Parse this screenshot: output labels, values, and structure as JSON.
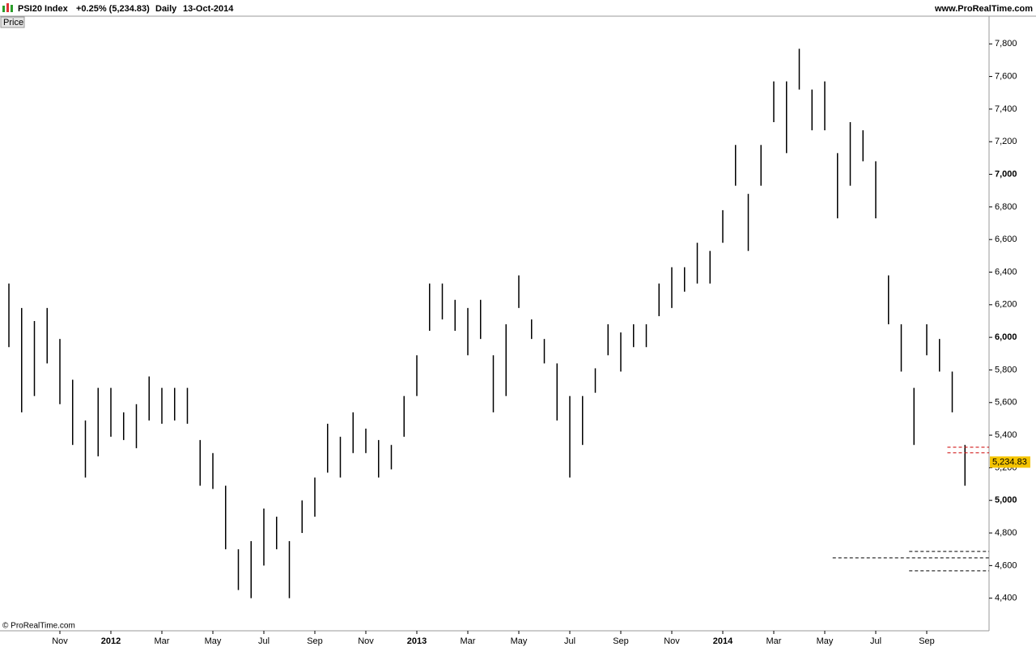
{
  "header": {
    "symbol": "PSI20 Index",
    "change": "+0.25% (5,234.83)",
    "period": "Daily",
    "date": "13-Oct-2014",
    "site": "www.ProRealTime.com"
  },
  "panel_label": "Price",
  "footer": "© ProRealTime.com",
  "chart_data": {
    "type": "ohlc",
    "color": "#000000",
    "categories": [
      null,
      null,
      null,
      null,
      "Nov",
      null,
      null,
      null,
      "2012",
      null,
      null,
      null,
      "Mar",
      null,
      null,
      null,
      "May",
      null,
      null,
      null,
      "Jul",
      null,
      null,
      null,
      "Sep",
      null,
      null,
      null,
      "Nov",
      null,
      null,
      null,
      "2013",
      null,
      null,
      null,
      "Mar",
      null,
      null,
      null,
      "May",
      null,
      null,
      null,
      "Jul",
      null,
      null,
      null,
      "Sep",
      null,
      null,
      null,
      "Nov",
      null,
      null,
      null,
      "2014",
      null,
      null,
      null,
      "Mar",
      null,
      null,
      null,
      "May",
      null,
      null,
      null,
      "Jul",
      null,
      null,
      null,
      "Sep",
      null,
      null,
      null
    ],
    "bold_categories": [
      "2012",
      "2013",
      "2014"
    ],
    "high": [
      6330,
      6180,
      6100,
      6180,
      5990,
      5740,
      5490,
      5690,
      5690,
      5540,
      5590,
      5760,
      5690,
      5690,
      5690,
      5370,
      5290,
      5090,
      4700,
      4750,
      4950,
      4900,
      4750,
      5000,
      5140,
      5470,
      5390,
      5540,
      5440,
      5370,
      5340,
      5640,
      5890,
      6330,
      6330,
      6230,
      6180,
      6230,
      5890,
      6080,
      6380,
      6110,
      5990,
      5840,
      5640,
      5640,
      5810,
      6080,
      6030,
      6080,
      6080,
      6330,
      6430,
      6430,
      6580,
      6530,
      6780,
      7180,
      6880,
      7180,
      7570,
      7570,
      7770,
      7520,
      7570,
      7130,
      7320,
      7270,
      7080,
      6380,
      6080,
      5690,
      6080,
      5990,
      5790,
      5340
    ],
    "low": [
      5940,
      5540,
      5640,
      5840,
      5590,
      5340,
      5140,
      5270,
      5390,
      5370,
      5320,
      5490,
      5470,
      5490,
      5470,
      5090,
      5070,
      4700,
      4450,
      4400,
      4600,
      4700,
      4400,
      4800,
      4900,
      5170,
      5140,
      5290,
      5290,
      5140,
      5190,
      5390,
      5640,
      6040,
      6110,
      6040,
      5890,
      5990,
      5540,
      5640,
      6180,
      5990,
      5840,
      5490,
      5140,
      5340,
      5660,
      5890,
      5790,
      5940,
      5940,
      6130,
      6180,
      6280,
      6330,
      6330,
      6580,
      6930,
      6530,
      6930,
      7320,
      7130,
      7520,
      7270,
      7270,
      6730,
      6930,
      7080,
      6730,
      6080,
      5790,
      5340,
      5890,
      5790,
      5540,
      5090
    ],
    "last": {
      "value": 5234.83,
      "label": "5,234.83"
    },
    "levels": [
      {
        "value": 5326,
        "start": 74,
        "color": "#cc0000"
      },
      {
        "value": 5292,
        "start": 74,
        "color": "#cc0000"
      },
      {
        "value": 4687,
        "start": 71,
        "color": "#000000"
      },
      {
        "value": 4647,
        "start": 65,
        "color": "#000000"
      },
      {
        "value": 4568,
        "start": 71,
        "color": "#000000"
      }
    ],
    "ylim": [
      4200,
      7970
    ],
    "yticks": [
      {
        "value": 4400,
        "label": "4,400"
      },
      {
        "value": 4600,
        "label": "4,600"
      },
      {
        "value": 4800,
        "label": "4,800"
      },
      {
        "value": 5000,
        "label": "5,000"
      },
      {
        "value": 5200,
        "label": "5,200"
      },
      {
        "value": 5400,
        "label": "5,400"
      },
      {
        "value": 5600,
        "label": "5,600"
      },
      {
        "value": 5800,
        "label": "5,800"
      },
      {
        "value": 6000,
        "label": "6,000"
      },
      {
        "value": 6200,
        "label": "6,200"
      },
      {
        "value": 6400,
        "label": "6,400"
      },
      {
        "value": 6600,
        "label": "6,600"
      },
      {
        "value": 6800,
        "label": "6,800"
      },
      {
        "value": 7000,
        "label": "7,000"
      },
      {
        "value": 7200,
        "label": "7,200"
      },
      {
        "value": 7400,
        "label": "7,400"
      },
      {
        "value": 7600,
        "label": "7,600"
      },
      {
        "value": 7800,
        "label": "7,800"
      }
    ],
    "bold_yticks": [
      5000,
      6000,
      7000
    ]
  }
}
